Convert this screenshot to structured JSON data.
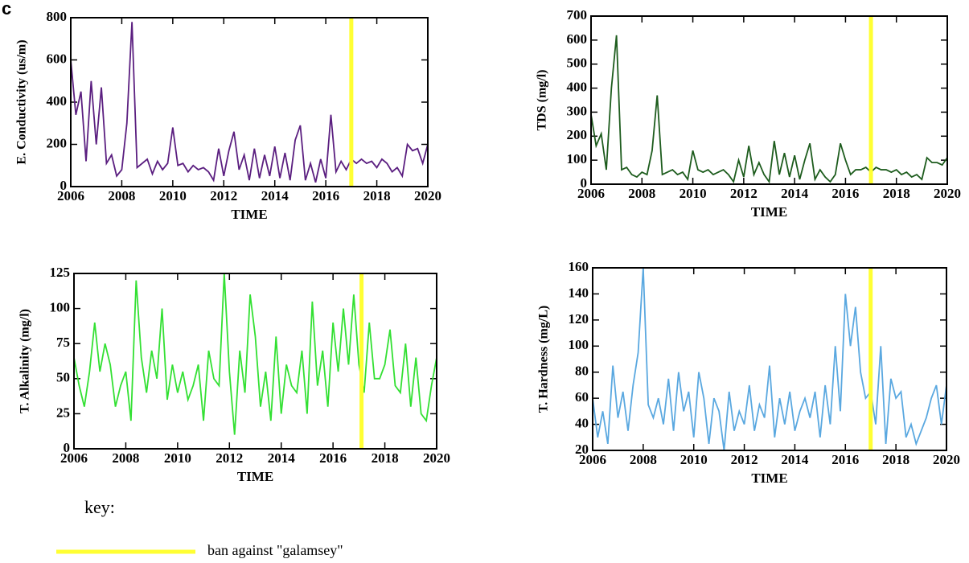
{
  "panel_label": "c",
  "key": {
    "title": "key:",
    "label": "ban against \"galamsey\"",
    "color": "#ffff33"
  },
  "chart_data": [
    {
      "type": "line",
      "ylabel": "E. Conductivity (us/m)",
      "xlabel": "TIME",
      "ban_x": 2017,
      "x": [
        2006,
        2006.2,
        2006.4,
        2006.6,
        2006.8,
        2007,
        2007.2,
        2007.4,
        2007.6,
        2007.8,
        2008,
        2008.2,
        2008.4,
        2008.6,
        2008.8,
        2009,
        2009.2,
        2009.4,
        2009.6,
        2009.8,
        2010,
        2010.2,
        2010.4,
        2010.6,
        2010.8,
        2011,
        2011.2,
        2011.4,
        2011.6,
        2011.8,
        2012,
        2012.2,
        2012.4,
        2012.6,
        2012.8,
        2013,
        2013.2,
        2013.4,
        2013.6,
        2013.8,
        2014,
        2014.2,
        2014.4,
        2014.6,
        2014.8,
        2015,
        2015.2,
        2015.4,
        2015.6,
        2015.8,
        2016,
        2016.2,
        2016.4,
        2016.6,
        2016.8,
        2017,
        2017.2,
        2017.4,
        2017.6,
        2017.8,
        2018,
        2018.2,
        2018.4,
        2018.6,
        2018.8,
        2019,
        2019.2,
        2019.4,
        2019.6,
        2019.8,
        2020
      ],
      "series": [
        {
          "color": "#5b1f80",
          "values": [
            600,
            340,
            450,
            120,
            500,
            200,
            470,
            110,
            150,
            50,
            80,
            300,
            780,
            90,
            110,
            130,
            60,
            120,
            80,
            110,
            280,
            100,
            110,
            70,
            100,
            80,
            90,
            70,
            30,
            180,
            50,
            170,
            260,
            80,
            150,
            30,
            180,
            40,
            150,
            50,
            190,
            40,
            160,
            30,
            220,
            290,
            30,
            110,
            20,
            130,
            40,
            340,
            70,
            120,
            80,
            130,
            110,
            130,
            110,
            120,
            90,
            130,
            110,
            70,
            90,
            50,
            200,
            170,
            180,
            110,
            200
          ]
        }
      ],
      "xlim": [
        2006,
        2020
      ],
      "xticks": [
        2006,
        2008,
        2010,
        2012,
        2014,
        2016,
        2018,
        2020
      ],
      "ylim": [
        0,
        800
      ],
      "yticks": [
        0,
        200,
        400,
        600,
        800
      ]
    },
    {
      "type": "line",
      "ylabel": "TDS (mg/l)",
      "xlabel": "TIME",
      "ban_x": 2017,
      "x": [
        2006,
        2006.2,
        2006.4,
        2006.6,
        2006.8,
        2007,
        2007.2,
        2007.4,
        2007.6,
        2007.8,
        2008,
        2008.2,
        2008.4,
        2008.6,
        2008.8,
        2009,
        2009.2,
        2009.4,
        2009.6,
        2009.8,
        2010,
        2010.2,
        2010.4,
        2010.6,
        2010.8,
        2011,
        2011.2,
        2011.4,
        2011.6,
        2011.8,
        2012,
        2012.2,
        2012.4,
        2012.6,
        2012.8,
        2013,
        2013.2,
        2013.4,
        2013.6,
        2013.8,
        2014,
        2014.2,
        2014.4,
        2014.6,
        2014.8,
        2015,
        2015.2,
        2015.4,
        2015.6,
        2015.8,
        2016,
        2016.2,
        2016.4,
        2016.6,
        2016.8,
        2017,
        2017.2,
        2017.4,
        2017.6,
        2017.8,
        2018,
        2018.2,
        2018.4,
        2018.6,
        2018.8,
        2019,
        2019.2,
        2019.4,
        2019.6,
        2019.8,
        2020
      ],
      "series": [
        {
          "color": "#1d5c1d",
          "values": [
            290,
            160,
            210,
            60,
            400,
            620,
            60,
            70,
            40,
            30,
            50,
            40,
            140,
            370,
            40,
            50,
            60,
            40,
            50,
            20,
            140,
            60,
            50,
            60,
            40,
            50,
            60,
            40,
            10,
            100,
            30,
            160,
            40,
            90,
            40,
            10,
            180,
            40,
            130,
            30,
            120,
            20,
            100,
            170,
            20,
            60,
            30,
            10,
            40,
            170,
            100,
            40,
            60,
            60,
            70,
            50,
            70,
            60,
            60,
            50,
            60,
            40,
            50,
            30,
            40,
            20,
            110,
            90,
            90,
            80,
            110
          ]
        }
      ],
      "xlim": [
        2006,
        2020
      ],
      "xticks": [
        2006,
        2008,
        2010,
        2012,
        2014,
        2016,
        2018,
        2020
      ],
      "ylim": [
        0,
        700
      ],
      "yticks": [
        0,
        100,
        200,
        300,
        400,
        500,
        600,
        700
      ]
    },
    {
      "type": "line",
      "ylabel": "T. Alkalinity (mg/l)",
      "xlabel": "TIME",
      "ban_x": 2017.1,
      "x": [
        2006,
        2006.2,
        2006.4,
        2006.6,
        2006.8,
        2007,
        2007.2,
        2007.4,
        2007.6,
        2007.8,
        2008,
        2008.2,
        2008.4,
        2008.6,
        2008.8,
        2009,
        2009.2,
        2009.4,
        2009.6,
        2009.8,
        2010,
        2010.2,
        2010.4,
        2010.6,
        2010.8,
        2011,
        2011.2,
        2011.4,
        2011.6,
        2011.8,
        2012,
        2012.2,
        2012.4,
        2012.6,
        2012.8,
        2013,
        2013.2,
        2013.4,
        2013.6,
        2013.8,
        2014,
        2014.2,
        2014.4,
        2014.6,
        2014.8,
        2015,
        2015.2,
        2015.4,
        2015.6,
        2015.8,
        2016,
        2016.2,
        2016.4,
        2016.6,
        2016.8,
        2017,
        2017.2,
        2017.4,
        2017.6,
        2017.8,
        2018,
        2018.2,
        2018.4,
        2018.6,
        2018.8,
        2019,
        2019.2,
        2019.4,
        2019.6,
        2019.8,
        2020
      ],
      "series": [
        {
          "color": "#33e033",
          "values": [
            65,
            45,
            30,
            55,
            90,
            55,
            75,
            60,
            30,
            45,
            55,
            20,
            120,
            65,
            40,
            70,
            50,
            100,
            35,
            60,
            40,
            55,
            35,
            45,
            60,
            20,
            70,
            50,
            45,
            125,
            55,
            10,
            70,
            40,
            110,
            80,
            30,
            55,
            20,
            80,
            25,
            60,
            45,
            40,
            70,
            25,
            105,
            45,
            70,
            30,
            90,
            55,
            100,
            60,
            110,
            60,
            40,
            90,
            50,
            50,
            60,
            85,
            45,
            40,
            75,
            30,
            65,
            25,
            20,
            45,
            65
          ]
        }
      ],
      "xlim": [
        2006,
        2020
      ],
      "xticks": [
        2006,
        2008,
        2010,
        2012,
        2014,
        2016,
        2018,
        2020
      ],
      "ylim": [
        0,
        125
      ],
      "yticks": [
        0,
        25,
        50,
        75,
        100,
        125
      ]
    },
    {
      "type": "line",
      "ylabel": "T. Hardness (mg/L)",
      "xlabel": "TIME",
      "ban_x": 2017,
      "x": [
        2006,
        2006.2,
        2006.4,
        2006.6,
        2006.8,
        2007,
        2007.2,
        2007.4,
        2007.6,
        2007.8,
        2008,
        2008.2,
        2008.4,
        2008.6,
        2008.8,
        2009,
        2009.2,
        2009.4,
        2009.6,
        2009.8,
        2010,
        2010.2,
        2010.4,
        2010.6,
        2010.8,
        2011,
        2011.2,
        2011.4,
        2011.6,
        2011.8,
        2012,
        2012.2,
        2012.4,
        2012.6,
        2012.8,
        2013,
        2013.2,
        2013.4,
        2013.6,
        2013.8,
        2014,
        2014.2,
        2014.4,
        2014.6,
        2014.8,
        2015,
        2015.2,
        2015.4,
        2015.6,
        2015.8,
        2016,
        2016.2,
        2016.4,
        2016.6,
        2016.8,
        2017,
        2017.2,
        2017.4,
        2017.6,
        2017.8,
        2018,
        2018.2,
        2018.4,
        2018.6,
        2018.8,
        2019,
        2019.2,
        2019.4,
        2019.6,
        2019.8,
        2020
      ],
      "series": [
        {
          "color": "#5aa8e0",
          "values": [
            60,
            30,
            50,
            25,
            85,
            45,
            65,
            35,
            70,
            95,
            160,
            55,
            45,
            60,
            40,
            75,
            35,
            80,
            50,
            65,
            30,
            80,
            60,
            25,
            60,
            50,
            20,
            65,
            35,
            50,
            40,
            70,
            35,
            55,
            45,
            85,
            30,
            60,
            40,
            65,
            35,
            50,
            60,
            45,
            65,
            30,
            70,
            40,
            100,
            50,
            140,
            100,
            130,
            80,
            60,
            65,
            40,
            100,
            25,
            75,
            60,
            65,
            30,
            40,
            25,
            35,
            45,
            60,
            70,
            40,
            70
          ]
        }
      ],
      "xlim": [
        2006,
        2020
      ],
      "xticks": [
        2006,
        2008,
        2010,
        2012,
        2014,
        2016,
        2018,
        2020
      ],
      "ylim": [
        20,
        160
      ],
      "yticks": [
        20,
        40,
        60,
        80,
        100,
        120,
        140,
        160
      ]
    }
  ]
}
